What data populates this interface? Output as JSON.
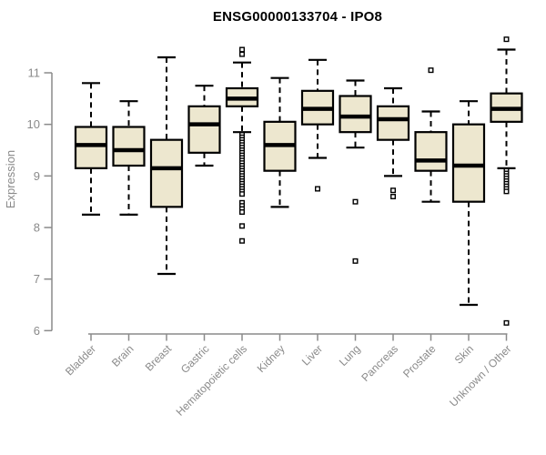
{
  "title": "ENSG00000133704 - IPO8",
  "colors": {
    "background": "#FFFFFF",
    "box_fill": "#EDE7CF",
    "box_stroke": "#000000",
    "median": "#000000",
    "whisker": "#000000",
    "outlier_stroke": "#000000",
    "axis": "#8A8A8A",
    "tick_label": "#8A8A8A",
    "title": "#000000"
  },
  "chart_data": {
    "type": "boxplot",
    "title": "ENSG00000133704 - IPO8",
    "xlabel": "",
    "ylabel": "Expression",
    "ylim": [
      6,
      11.8
    ],
    "yticks": [
      6,
      7,
      8,
      9,
      10,
      11
    ],
    "grid": false,
    "legend": "none",
    "categories": [
      "Bladder",
      "Brain",
      "Breast",
      "Gastric",
      "Hematopoietic cells",
      "Kidney",
      "Liver",
      "Lung",
      "Pancreas",
      "Prostate",
      "Skin",
      "Unknown / Other"
    ],
    "boxes": [
      {
        "category": "Bladder",
        "whisker_low": 8.25,
        "q1": 9.15,
        "median": 9.6,
        "q3": 9.95,
        "whisker_high": 10.8,
        "outliers": []
      },
      {
        "category": "Brain",
        "whisker_low": 8.25,
        "q1": 9.2,
        "median": 9.5,
        "q3": 9.95,
        "whisker_high": 10.45,
        "outliers": []
      },
      {
        "category": "Breast",
        "whisker_low": 7.1,
        "q1": 8.4,
        "median": 9.15,
        "q3": 9.7,
        "whisker_high": 11.3,
        "outliers": []
      },
      {
        "category": "Gastric",
        "whisker_low": 9.2,
        "q1": 9.45,
        "median": 10.0,
        "q3": 10.35,
        "whisker_high": 10.75,
        "outliers": []
      },
      {
        "category": "Hematopoietic cells",
        "whisker_low": 9.85,
        "q1": 10.35,
        "median": 10.5,
        "q3": 10.7,
        "whisker_high": 11.2,
        "outliers": [
          11.45,
          11.36,
          9.8,
          9.75,
          9.7,
          9.65,
          9.6,
          9.55,
          9.5,
          9.45,
          9.4,
          9.35,
          9.3,
          9.25,
          9.2,
          9.15,
          9.1,
          9.05,
          9.0,
          8.95,
          8.9,
          8.85,
          8.8,
          8.75,
          8.7,
          8.65,
          8.48,
          8.42,
          8.36,
          8.3,
          8.03,
          7.74
        ]
      },
      {
        "category": "Kidney",
        "whisker_low": 8.4,
        "q1": 9.1,
        "median": 9.6,
        "q3": 10.05,
        "whisker_high": 10.9,
        "outliers": []
      },
      {
        "category": "Liver",
        "whisker_low": 9.35,
        "q1": 10.0,
        "median": 10.3,
        "q3": 10.65,
        "whisker_high": 11.25,
        "outliers": [
          8.75
        ]
      },
      {
        "category": "Lung",
        "whisker_low": 9.55,
        "q1": 9.85,
        "median": 10.15,
        "q3": 10.55,
        "whisker_high": 10.85,
        "outliers": [
          8.5,
          7.35
        ]
      },
      {
        "category": "Pancreas",
        "whisker_low": 9.0,
        "q1": 9.7,
        "median": 10.1,
        "q3": 10.35,
        "whisker_high": 10.7,
        "outliers": [
          8.72,
          8.6
        ]
      },
      {
        "category": "Prostate",
        "whisker_low": 8.5,
        "q1": 9.1,
        "median": 9.3,
        "q3": 9.85,
        "whisker_high": 10.25,
        "outliers": [
          11.05
        ]
      },
      {
        "category": "Skin",
        "whisker_low": 6.5,
        "q1": 8.5,
        "median": 9.2,
        "q3": 10.0,
        "whisker_high": 10.45,
        "outliers": []
      },
      {
        "category": "Unknown / Other",
        "whisker_low": 9.15,
        "q1": 10.05,
        "median": 10.3,
        "q3": 10.6,
        "whisker_high": 11.45,
        "outliers": [
          11.65,
          9.1,
          9.05,
          9.0,
          8.95,
          8.9,
          8.85,
          8.8,
          8.75,
          8.7,
          6.15
        ]
      }
    ]
  }
}
